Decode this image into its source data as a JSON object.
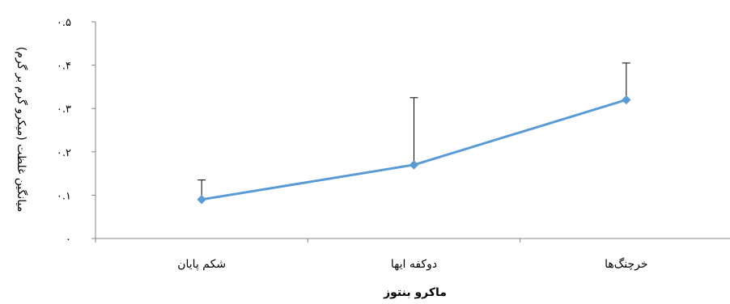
{
  "chart_data": {
    "type": "line",
    "categories": [
      "شکم پایان",
      "دوکفه ایها",
      "خرچنگ‌ها"
    ],
    "series": [
      {
        "values": [
          0.09,
          0.17,
          0.32
        ],
        "error_plus": [
          0.045,
          0.155,
          0.085
        ],
        "color": "#5b9bd5",
        "marker": "diamond"
      }
    ],
    "xlabel": "ماکرو بنتوز",
    "ylabel": "میانگین غلظت (میکرو گرم بر گرم)",
    "ylim": [
      0,
      0.5
    ],
    "yticks": [
      0,
      0.1,
      0.2,
      0.3,
      0.4,
      0.5
    ],
    "ytick_labels": [
      "۰",
      "۰.۱",
      "۰.۲",
      "۰.۳",
      "۰.۴",
      "۰.۵"
    ],
    "grid": false,
    "legend": "none"
  }
}
